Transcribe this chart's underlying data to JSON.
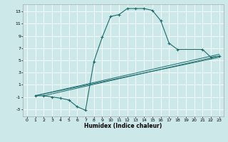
{
  "xlabel": "Humidex (Indice chaleur)",
  "background_color": "#cce8e8",
  "grid_color": "#ffffff",
  "line_color": "#1a6b6b",
  "xlim": [
    -0.5,
    23.5
  ],
  "ylim": [
    -4.2,
    14.2
  ],
  "xticks": [
    0,
    1,
    2,
    3,
    4,
    5,
    6,
    7,
    8,
    9,
    10,
    11,
    12,
    13,
    14,
    15,
    16,
    17,
    18,
    19,
    20,
    21,
    22,
    23
  ],
  "yticks": [
    -3,
    -1,
    1,
    3,
    5,
    7,
    9,
    11,
    13
  ],
  "main_curve_x": [
    1,
    2,
    3,
    4,
    5,
    6,
    7,
    8,
    9,
    10,
    11,
    12,
    13,
    14,
    15,
    16,
    17,
    18,
    21,
    22,
    23
  ],
  "main_curve_y": [
    -0.8,
    -0.8,
    -1.0,
    -1.2,
    -1.5,
    -2.6,
    -3.2,
    4.8,
    8.8,
    12.2,
    12.5,
    13.5,
    13.5,
    13.5,
    13.2,
    11.5,
    7.8,
    6.8,
    6.8,
    5.5,
    5.7
  ],
  "line1_x": [
    1,
    23
  ],
  "line1_y": [
    -0.8,
    6.0
  ],
  "line2_x": [
    1,
    23
  ],
  "line2_y": [
    -0.8,
    5.5
  ],
  "line3_x": [
    2,
    23
  ],
  "line3_y": [
    -0.8,
    5.7
  ]
}
